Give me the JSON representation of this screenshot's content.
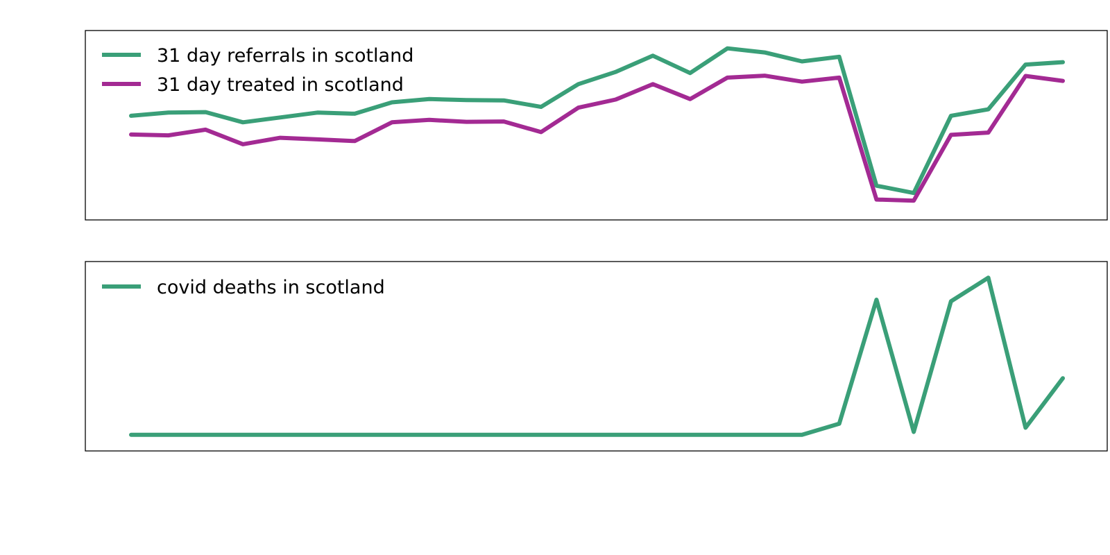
{
  "colors": {
    "referrals": "#3a9f78",
    "treated": "#a32a93",
    "covid": "#3a9f78"
  },
  "chart_data": [
    {
      "type": "line",
      "x": [
        1,
        2,
        3,
        4,
        5,
        6,
        7,
        8,
        9,
        10,
        11,
        12,
        13,
        14,
        15,
        16,
        17,
        18,
        19,
        20,
        21,
        22,
        23,
        24,
        25,
        26
      ],
      "series": [
        {
          "name": "31 day referrals in scotland",
          "color_key": "referrals",
          "values": [
            0.585,
            0.605,
            0.608,
            0.545,
            0.575,
            0.605,
            0.598,
            0.668,
            0.688,
            0.682,
            0.68,
            0.64,
            0.78,
            0.855,
            0.955,
            0.848,
            1.0,
            0.975,
            0.92,
            0.948,
            0.155,
            0.11,
            0.585,
            0.625,
            0.9,
            0.915
          ]
        },
        {
          "name": "31 day treated in scotland",
          "color_key": "treated",
          "values": [
            0.47,
            0.465,
            0.5,
            0.41,
            0.45,
            0.44,
            0.43,
            0.545,
            0.56,
            0.548,
            0.55,
            0.485,
            0.635,
            0.685,
            0.78,
            0.688,
            0.82,
            0.832,
            0.795,
            0.82,
            0.07,
            0.063,
            0.468,
            0.482,
            0.83,
            0.8
          ]
        }
      ],
      "ylim": [
        0,
        1.05
      ],
      "legend": "top-left",
      "grid": false
    },
    {
      "type": "line",
      "x": [
        1,
        2,
        3,
        4,
        5,
        6,
        7,
        8,
        9,
        10,
        11,
        12,
        13,
        14,
        15,
        16,
        17,
        18,
        19,
        20,
        21,
        22,
        23,
        24,
        25,
        26
      ],
      "series": [
        {
          "name": "covid deaths in scotland",
          "color_key": "covid",
          "values": [
            0,
            0,
            0,
            0,
            0,
            0,
            0,
            0,
            0,
            0,
            0,
            0,
            0,
            0,
            0,
            0,
            0,
            0,
            0,
            0.07,
            0.86,
            0.018,
            0.85,
            1.0,
            0.045,
            0.36
          ]
        }
      ],
      "ylim": [
        -0.05,
        1.05
      ],
      "legend": "top-left",
      "grid": false
    }
  ]
}
